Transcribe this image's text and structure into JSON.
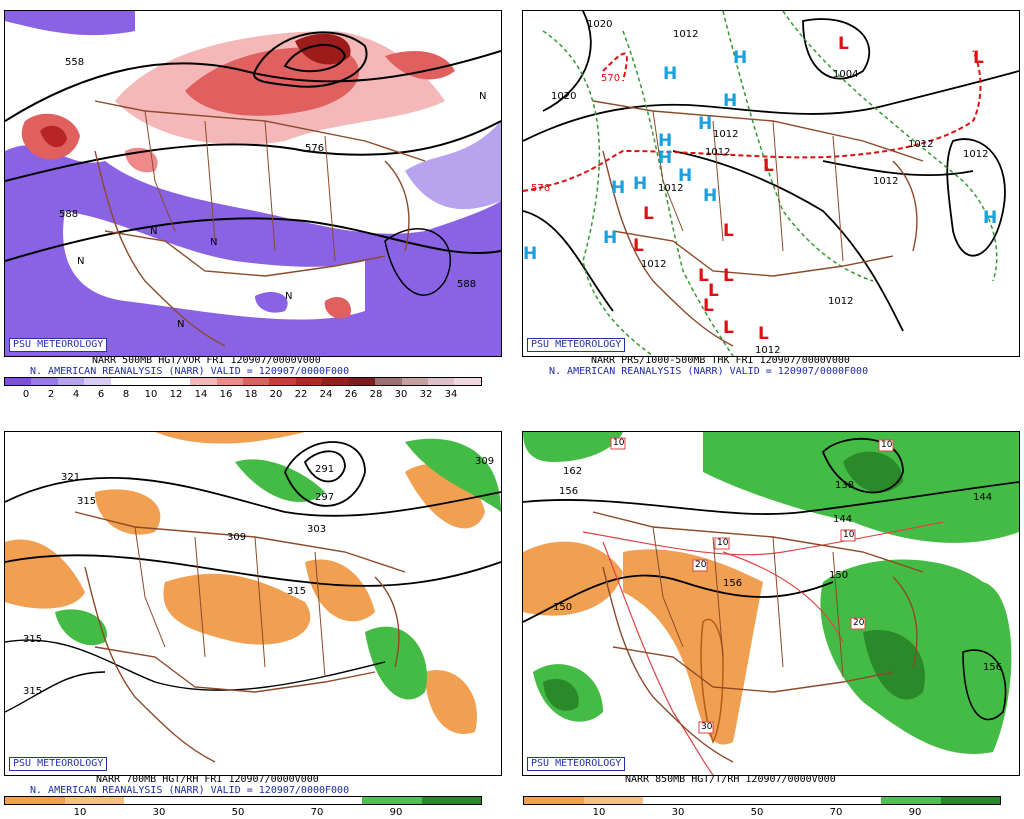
{
  "brand_label": "PSU METEOROLOGY",
  "panels": [
    {
      "id": "p1",
      "caption_line1": "NARR 500MB HGT/VOR FRI 120907/0000V000",
      "caption_line2": "N. AMERICAN REANALYSIS (NARR) VALID = 120907/0000F000",
      "colorbar": [
        "#7d4ee0",
        "#9a7ae8",
        "#b7a3ee",
        "#d6ccf5",
        "#ffffff",
        "#ffffff",
        "#ffffff",
        "#f5b8b8",
        "#ee8a8a",
        "#e06060",
        "#d03a3a",
        "#b82525",
        "#9c1c1c",
        "#7d1c1c",
        "#a07070",
        "#c4a0a0",
        "#e0c0c8",
        "#f0d8e0"
      ],
      "ticks": [
        "0",
        "2",
        "4",
        "6",
        "8",
        "10",
        "12",
        "14",
        "16",
        "18",
        "20",
        "22",
        "24",
        "26",
        "28",
        "30",
        "32",
        "34"
      ],
      "map_labels": [
        "558",
        "588",
        "588",
        "576",
        "N",
        "N",
        "N",
        "N",
        "N",
        "N"
      ]
    },
    {
      "id": "p2",
      "caption_line1": "NARR PRS/1000-500MB THK FRI 120907/0000V000",
      "caption_line2": "N. AMERICAN REANALYSIS (NARR) VALID = 120907/0000F000",
      "map_labels": [
        "1020",
        "1012",
        "1012",
        "1012",
        "1012",
        "1012",
        "1012",
        "1004",
        "1012",
        "576",
        "570",
        "1020",
        "1012",
        "1012",
        "1012"
      ]
    },
    {
      "id": "p3",
      "caption_line1": "NARR 700MB HGT/RH FRI 120907/0000V000",
      "caption_line2": "N. AMERICAN REANALYSIS (NARR) VALID = 120907/0000F000",
      "colorbar": [
        "#f0a050",
        "#f6c080",
        "#ffffff",
        "#ffffff",
        "#ffffff",
        "#ffffff",
        "#50c050",
        "#2a8a2a"
      ],
      "ticks": [
        "10",
        "30",
        "50",
        "70",
        "90"
      ],
      "map_labels": [
        "321",
        "315",
        "315",
        "315",
        "309",
        "309",
        "303",
        "297",
        "291",
        "309",
        "315"
      ]
    },
    {
      "id": "p4",
      "caption_line1": "NARR 850MB HGT/T/RH 120907/0000V000",
      "colorbar": [
        "#f0a050",
        "#f6c080",
        "#ffffff",
        "#ffffff",
        "#ffffff",
        "#ffffff",
        "#50c050",
        "#2a8a2a"
      ],
      "ticks": [
        "10",
        "30",
        "50",
        "70",
        "90"
      ],
      "map_labels": [
        "162",
        "156",
        "150",
        "156",
        "150",
        "144",
        "138",
        "144",
        "156",
        "10",
        "10",
        "10",
        "10",
        "20",
        "20",
        "30"
      ]
    }
  ]
}
